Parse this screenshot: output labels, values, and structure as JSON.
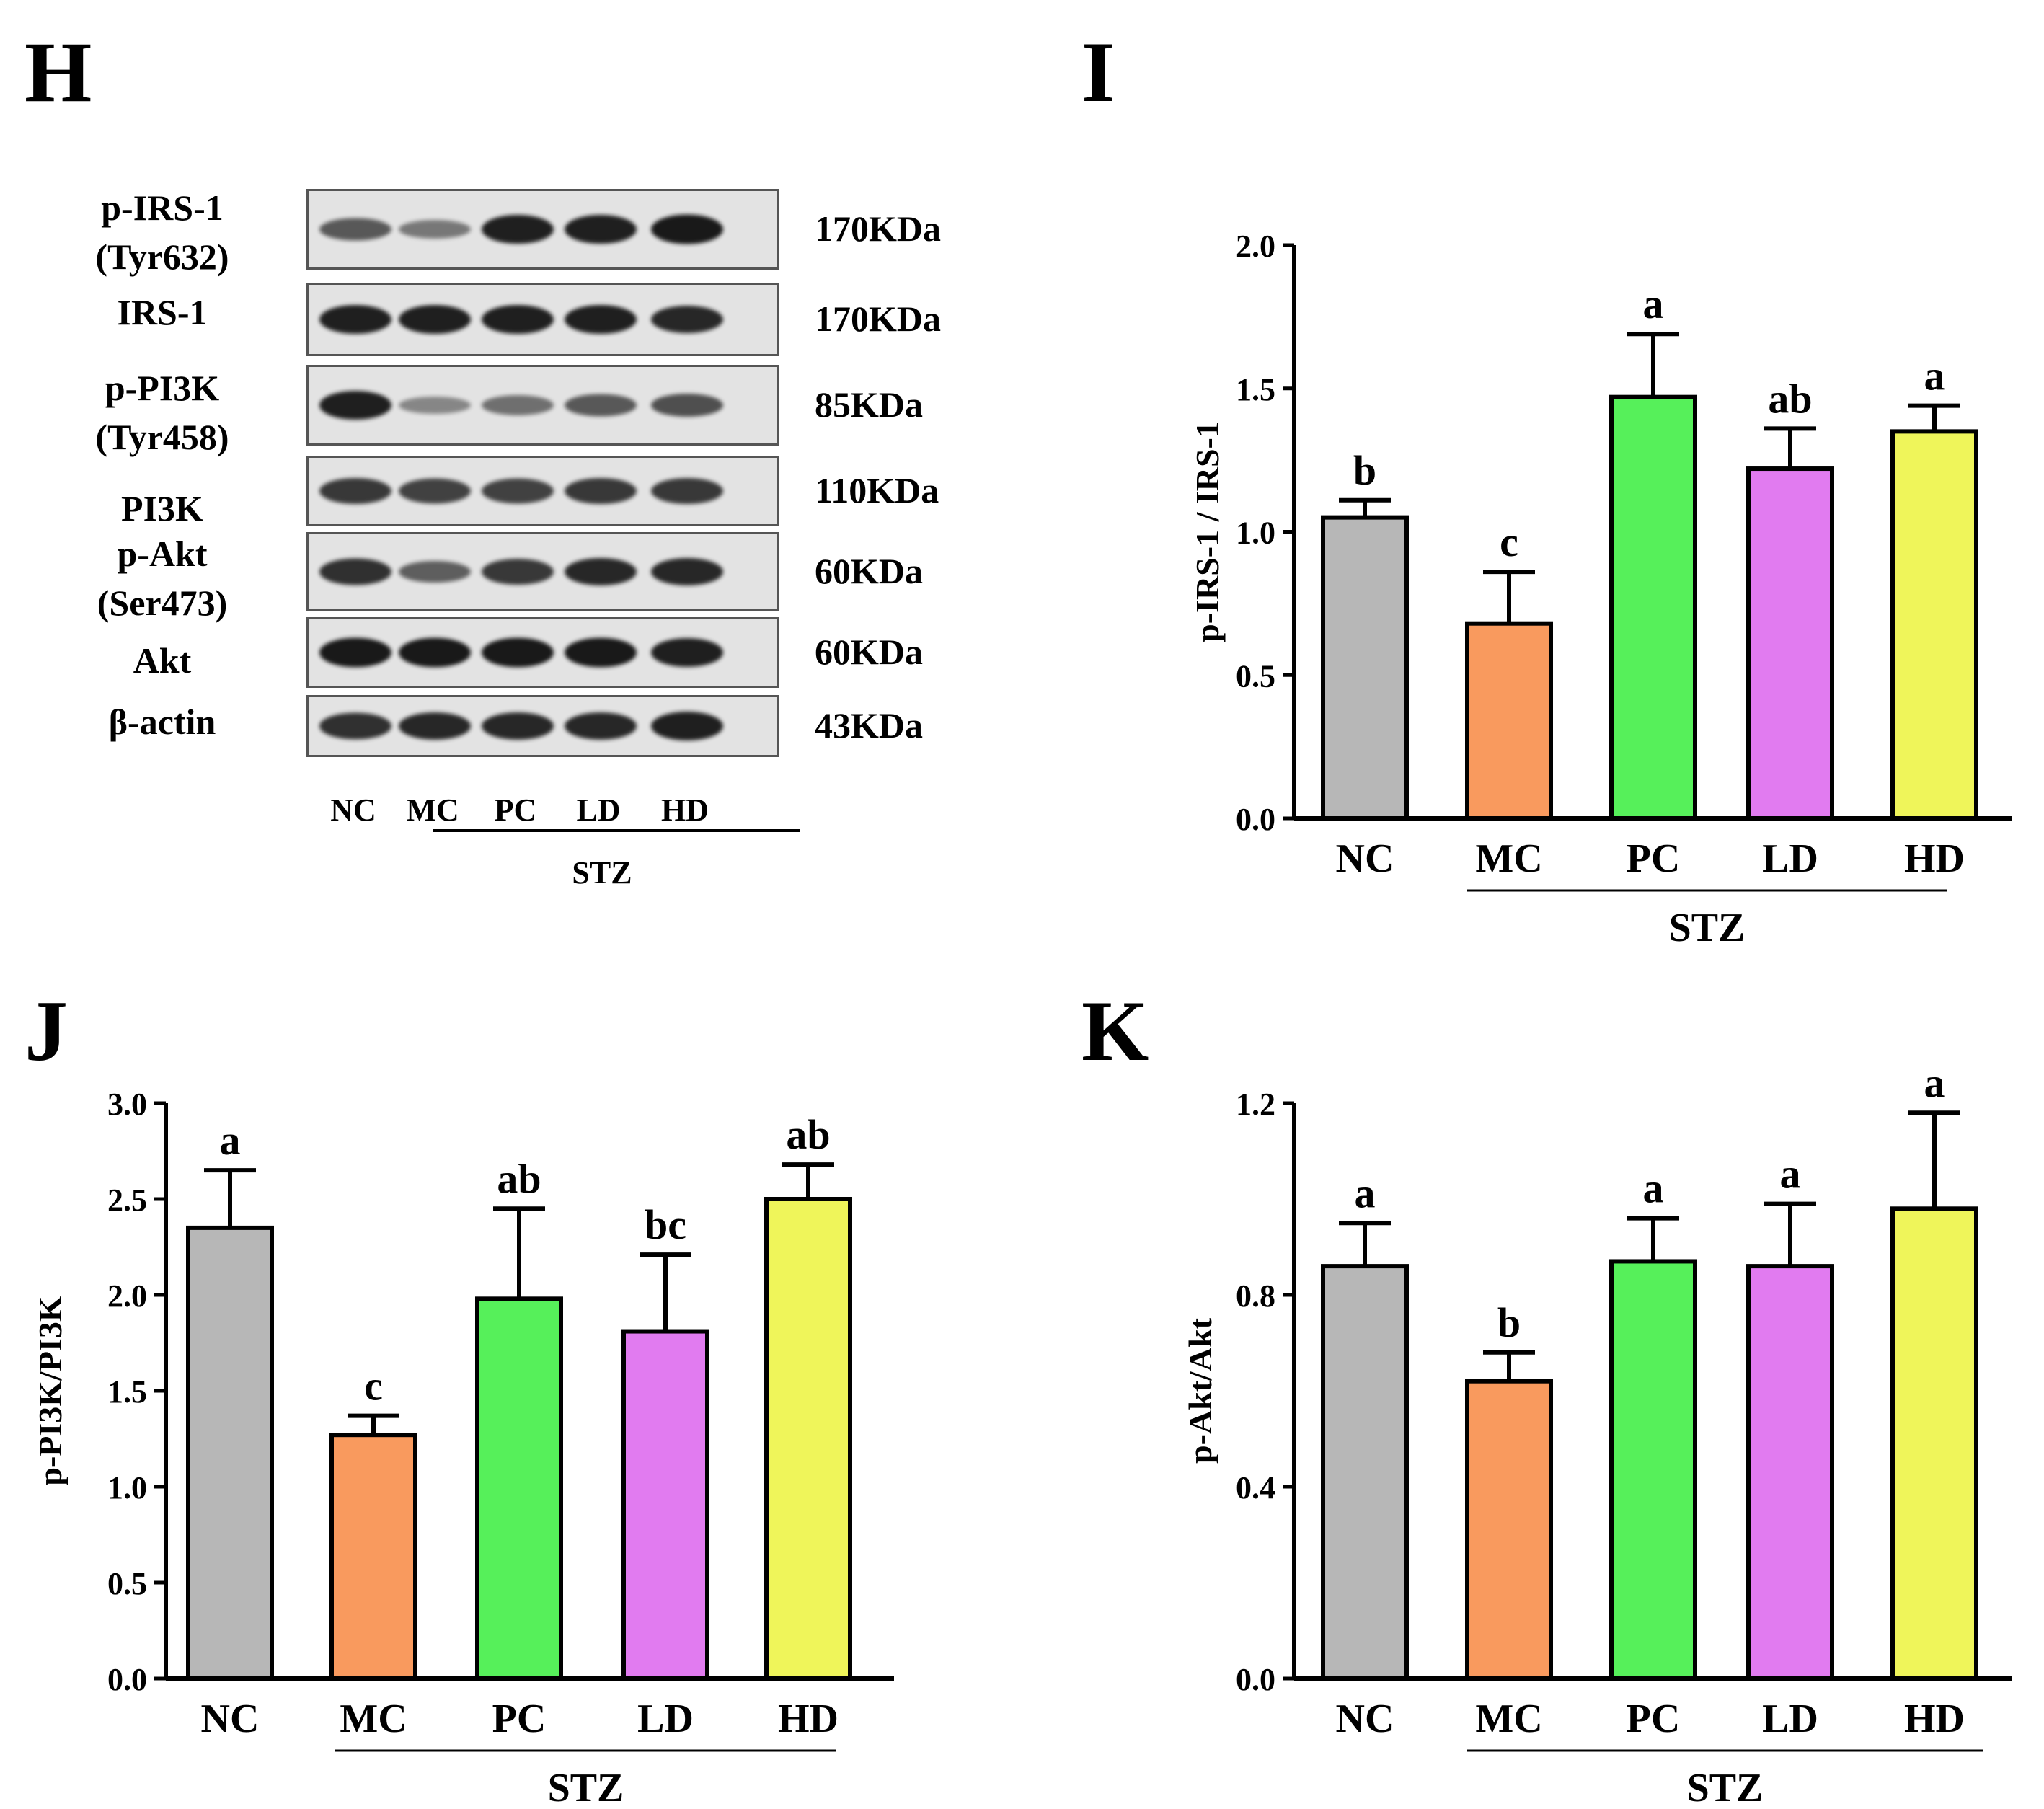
{
  "panels": {
    "H": "H",
    "I": "I",
    "J": "J",
    "K": "K"
  },
  "blot": {
    "rows": [
      {
        "label": "p-IRS-1\n(Tyr632)",
        "size": "170KDa",
        "intensity": [
          0.55,
          0.35,
          0.9,
          0.9,
          0.95
        ]
      },
      {
        "label": "IRS-1",
        "size": "170KDa",
        "intensity": [
          0.9,
          0.9,
          0.9,
          0.9,
          0.85
        ]
      },
      {
        "label": "p-PI3K\n(Tyr458)",
        "size": "85KDa",
        "intensity": [
          0.9,
          0.25,
          0.4,
          0.55,
          0.6
        ]
      },
      {
        "label": "PI3K",
        "size": "110KDa",
        "intensity": [
          0.75,
          0.7,
          0.7,
          0.75,
          0.75
        ]
      },
      {
        "label": "p-Akt\n(Ser473)",
        "size": "60KDa",
        "intensity": [
          0.8,
          0.5,
          0.75,
          0.85,
          0.85
        ]
      },
      {
        "label": "Akt",
        "size": "60KDa",
        "intensity": [
          0.95,
          0.95,
          0.95,
          0.95,
          0.9
        ]
      },
      {
        "label": "β-actin",
        "size": "43KDa",
        "intensity": [
          0.8,
          0.85,
          0.85,
          0.85,
          0.9
        ]
      }
    ],
    "lanes": [
      "NC",
      "MC",
      "PC",
      "LD",
      "HD"
    ],
    "group_label": "STZ"
  },
  "chart_data": [
    {
      "panel": "I",
      "type": "bar",
      "categories": [
        "NC",
        "MC",
        "PC",
        "LD",
        "HD"
      ],
      "values": [
        1.05,
        0.68,
        1.47,
        1.22,
        1.35
      ],
      "errors": [
        0.06,
        0.18,
        0.22,
        0.14,
        0.09
      ],
      "letters": [
        "b",
        "c",
        "a",
        "ab",
        "a"
      ],
      "colors": [
        "#b7b7b7",
        "#f99a5e",
        "#56f05a",
        "#e17bf0",
        "#eff55a"
      ],
      "ylabel": "p-IRS-1 / IRS-1",
      "ylim": [
        0,
        2.0
      ],
      "yticks": [
        "0.0",
        "0.5",
        "1.0",
        "1.5",
        "2.0"
      ],
      "group_label": "STZ"
    },
    {
      "panel": "J",
      "type": "bar",
      "categories": [
        "NC",
        "MC",
        "PC",
        "LD",
        "HD"
      ],
      "values": [
        2.35,
        1.27,
        1.98,
        1.81,
        2.5
      ],
      "errors": [
        0.3,
        0.1,
        0.47,
        0.4,
        0.18
      ],
      "letters": [
        "a",
        "c",
        "ab",
        "bc",
        "ab"
      ],
      "colors": [
        "#b7b7b7",
        "#f99a5e",
        "#56f05a",
        "#e17bf0",
        "#eff55a"
      ],
      "ylabel": "p-PI3K/PI3K",
      "ylim": [
        0,
        3.0
      ],
      "yticks": [
        "0.0",
        "0.5",
        "1.0",
        "1.5",
        "2.0",
        "2.5",
        "3.0"
      ],
      "group_label": "STZ"
    },
    {
      "panel": "K",
      "type": "bar",
      "categories": [
        "NC",
        "MC",
        "PC",
        "LD",
        "HD"
      ],
      "values": [
        0.86,
        0.62,
        0.87,
        0.86,
        0.98
      ],
      "errors": [
        0.09,
        0.06,
        0.09,
        0.13,
        0.2
      ],
      "letters": [
        "a",
        "b",
        "a",
        "a",
        "a"
      ],
      "colors": [
        "#b7b7b7",
        "#f99a5e",
        "#56f05a",
        "#e17bf0",
        "#eff55a"
      ],
      "ylabel": "p-Akt/Akt",
      "ylim": [
        0,
        1.2
      ],
      "yticks": [
        "0.0",
        "0.4",
        "0.8",
        "1.2"
      ],
      "group_label": "STZ"
    }
  ]
}
